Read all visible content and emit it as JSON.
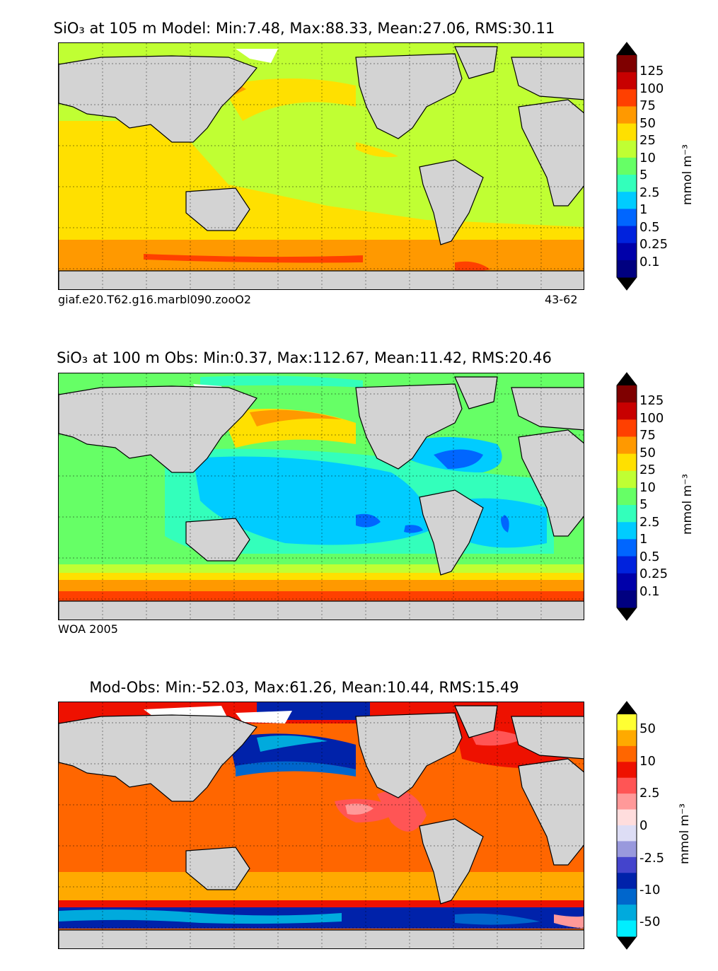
{
  "panels": [
    {
      "id": "model",
      "title_text": "SiO₃ at 105 m Model: Min:7.48, Max:88.33, Mean:27.06, RMS:30.11",
      "footer_left": "giaf.e20.T62.g16.marbl090.zooO2",
      "footer_right": "43-62",
      "colorbar_labels": [
        "125",
        "100",
        "75",
        "50",
        "25",
        "10",
        "5",
        "2.5",
        "1",
        "0.5",
        "0.25",
        "0.1"
      ],
      "colorbar_colors": [
        "#7f0000",
        "#c80000",
        "#ff4000",
        "#ff9900",
        "#ffe000",
        "#c0ff33",
        "#66ff66",
        "#33ffbb",
        "#00ccff",
        "#0066ff",
        "#0022dd",
        "#0000aa",
        "#000080"
      ],
      "unit_label": "mmol m⁻³"
    },
    {
      "id": "obs",
      "title_text": "SiO₃ at 100 m Obs: Min:0.37, Max:112.67, Mean:11.42, RMS:20.46",
      "footer_left": "WOA 2005",
      "footer_right": "",
      "colorbar_labels": [
        "125",
        "100",
        "75",
        "50",
        "25",
        "10",
        "5",
        "2.5",
        "1",
        "0.5",
        "0.25",
        "0.1"
      ],
      "colorbar_colors": [
        "#7f0000",
        "#c80000",
        "#ff4000",
        "#ff9900",
        "#ffe000",
        "#c0ff33",
        "#66ff66",
        "#33ffbb",
        "#00ccff",
        "#0066ff",
        "#0022dd",
        "#0000aa",
        "#000080"
      ],
      "unit_label": "mmol m⁻³"
    },
    {
      "id": "diff",
      "title_text": "Mod-Obs: Min:-52.03, Max:61.26, Mean:10.44, RMS:15.49",
      "footer_left": "",
      "footer_right": "",
      "colorbar_labels": [
        "50",
        "10",
        "2.5",
        "0",
        "-2.5",
        "-10",
        "-50"
      ],
      "colorbar_colors": [
        "#ffff33",
        "#ffaa00",
        "#ff6600",
        "#ee1100",
        "#ff5555",
        "#ff9999",
        "#ffdddd",
        "#ddddf5",
        "#9999dd",
        "#4444cc",
        "#0022aa",
        "#0066cc",
        "#00aadd",
        "#00eeff"
      ],
      "unit_label": "mmol m⁻³"
    }
  ],
  "colors": {
    "land": "#d3d3d3",
    "sea_ice": "#ffffff"
  }
}
